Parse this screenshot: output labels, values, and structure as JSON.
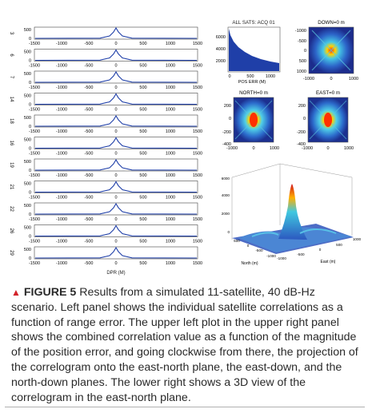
{
  "left_panel": {
    "rows": [
      {
        "sat": "3",
        "yticks": [
          "500",
          "0"
        ],
        "xticks": [
          "-1500",
          "-1000",
          "-500",
          "0",
          "500",
          "1000",
          "1500"
        ]
      },
      {
        "sat": "6",
        "yticks": [
          "500",
          "0"
        ],
        "xticks": [
          "-1500",
          "-1000",
          "-500",
          "0",
          "500",
          "1000",
          "1500"
        ]
      },
      {
        "sat": "7",
        "yticks": [
          "500",
          "0"
        ],
        "xticks": [
          "-1500",
          "-1000",
          "-500",
          "0",
          "500",
          "1000",
          "1500"
        ]
      },
      {
        "sat": "14",
        "yticks": [
          "500",
          "0"
        ],
        "xticks": [
          "-1500",
          "-1000",
          "-500",
          "0",
          "500",
          "1000",
          "1500"
        ]
      },
      {
        "sat": "18",
        "yticks": [
          "500",
          "0"
        ],
        "xticks": [
          "-1500",
          "-1000",
          "-500",
          "0",
          "500",
          "1000",
          "1500"
        ]
      },
      {
        "sat": "16",
        "yticks": [
          "500",
          "0"
        ],
        "xticks": [
          "-1500",
          "-1000",
          "-500",
          "0",
          "500",
          "1000",
          "1500"
        ]
      },
      {
        "sat": "19",
        "yticks": [
          "500",
          "0"
        ],
        "xticks": [
          "-1500",
          "-1000",
          "-500",
          "0",
          "500",
          "1000",
          "1500"
        ]
      },
      {
        "sat": "21",
        "yticks": [
          "500",
          "0"
        ],
        "xticks": [
          "-1500",
          "-1000",
          "-500",
          "0",
          "500",
          "1000",
          "1500"
        ]
      },
      {
        "sat": "22",
        "yticks": [
          "500",
          "0"
        ],
        "xticks": [
          "-1500",
          "-1000",
          "-500",
          "0",
          "500",
          "1000",
          "1500"
        ]
      },
      {
        "sat": "26",
        "yticks": [
          "500",
          "0"
        ],
        "xticks": [
          "-1500",
          "-1000",
          "-500",
          "0",
          "500",
          "1000",
          "1500"
        ]
      },
      {
        "sat": "29",
        "yticks": [
          "500",
          "0"
        ],
        "xticks": [
          "-1500",
          "-1000",
          "-500",
          "0",
          "500",
          "1000",
          "1500"
        ]
      }
    ],
    "xlabel": "DPR (M)",
    "line_color": "#1f3fa8"
  },
  "all_sats": {
    "title": "ALL SATS: ACQ 01",
    "yticks": [
      "6000",
      "4000",
      "2000"
    ],
    "xticks": [
      "0",
      "500",
      "1000"
    ],
    "xlabel": "POS ERR (M)",
    "fill_color": "#1f3fa8"
  },
  "down": {
    "title": "DOWN=0 m",
    "yticks": [
      "-1000",
      "-500",
      "0",
      "500",
      "1000"
    ],
    "xticks": [
      "-1000",
      "0",
      "1000"
    ]
  },
  "north": {
    "title": "NORTH=0 m",
    "yticks": [
      "-400",
      "-200",
      "0",
      "200"
    ],
    "xticks": [
      "-1000",
      "0",
      "1000"
    ]
  },
  "east": {
    "title": "EAST=0 m",
    "yticks": [
      "-400",
      "-200",
      "0",
      "200"
    ],
    "xticks": [
      "-1000",
      "0",
      "1000"
    ]
  },
  "surface": {
    "zticks": [
      "6000",
      "4000",
      "2000",
      "0"
    ],
    "east_ticks": [
      "-1000",
      "-500",
      "0",
      "500",
      "1000"
    ],
    "north_ticks": [
      "500",
      "0",
      "-500",
      "-1000"
    ],
    "north_label": "North (m)",
    "east_label": "East (m)"
  },
  "caption": {
    "label": "FIGURE 5",
    "text": "Results from a simulated 11-satellite, 40 dB-Hz scenario. Left panel shows the individual satellite correlations as a function of range error. The upper left plot in the upper right panel shows the combined correlation value as a function of the magnitude of the position error, and going clockwise from there, the projection of the correlogram onto the east-north plane, the east-down, and the north-down planes. The lower right shows a 3D view of the correlogram in the east-north plane.",
    "marker_color": "#d2232a"
  }
}
